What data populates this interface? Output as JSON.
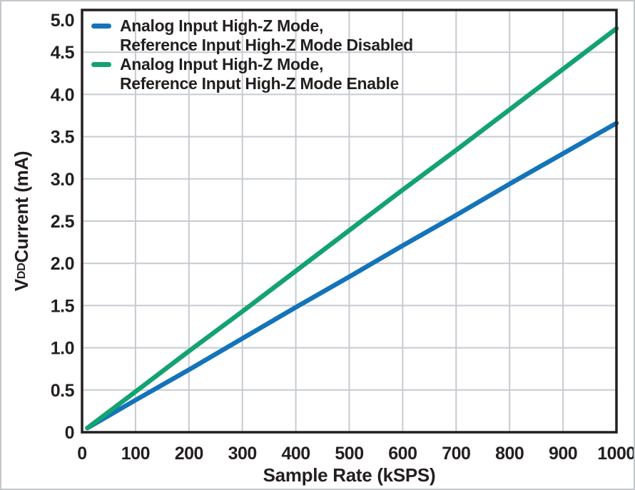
{
  "chart_data": {
    "type": "line",
    "title": "",
    "xlabel": "Sample Rate (kSPS)",
    "ylabel": {
      "prefix": "V",
      "subscript": "DD",
      "suffix": " Current (mA)"
    },
    "xlim": [
      0,
      1000
    ],
    "ylim": [
      0,
      5.0
    ],
    "xticks": [
      0,
      100,
      200,
      300,
      400,
      500,
      600,
      700,
      800,
      900,
      1000
    ],
    "xtick_labels": [
      "0",
      "100",
      "200",
      "300",
      "400",
      "500",
      "600",
      "700",
      "800",
      "900",
      "1000"
    ],
    "yticks": [
      0,
      0.5,
      1.0,
      1.5,
      2.0,
      2.5,
      3.0,
      3.5,
      4.0,
      4.5,
      5.0
    ],
    "ytick_labels": [
      "0",
      "0.5",
      "1.0",
      "1.5",
      "2.0",
      "2.5",
      "3.0",
      "3.5",
      "4.0",
      "4.5",
      "5.0"
    ],
    "grid": true,
    "legend_position": "top-left",
    "series": [
      {
        "name": "Analog Input High-Z Mode, Reference Input High-Z Mode Disabled",
        "legend_line1": "Analog Input High-Z Mode,",
        "legend_line2": "Reference Input High-Z Mode Disabled",
        "color": "#1474BA",
        "x": [
          10,
          100,
          200,
          300,
          400,
          500,
          600,
          700,
          800,
          900,
          1000
        ],
        "y": [
          0.05,
          0.38,
          0.74,
          1.11,
          1.48,
          1.84,
          2.21,
          2.57,
          2.94,
          3.3,
          3.66
        ]
      },
      {
        "name": "Analog Input High-Z Mode, Reference Input High-Z Mode Enable",
        "legend_line1": "Analog Input High-Z Mode,",
        "legend_line2": "Reference Input High-Z Mode Enable",
        "color": "#14A273",
        "x": [
          10,
          100,
          200,
          300,
          400,
          500,
          600,
          700,
          800,
          900,
          1000
        ],
        "y": [
          0.05,
          0.48,
          0.96,
          1.43,
          1.91,
          2.39,
          2.87,
          3.34,
          3.82,
          4.3,
          4.78
        ]
      }
    ],
    "colors": {
      "axis": "#231f20",
      "grid": "#c7cad0",
      "text": "#231f20",
      "background": "#ffffff"
    }
  }
}
